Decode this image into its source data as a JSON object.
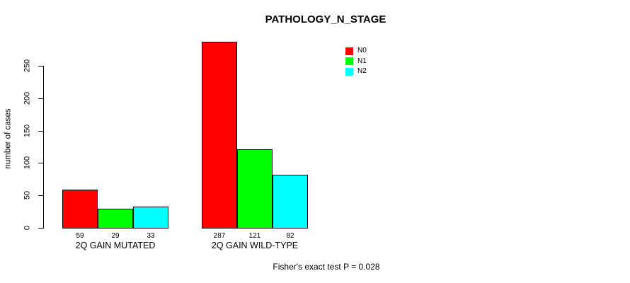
{
  "chart_data": {
    "type": "bar",
    "title": "PATHOLOGY_N_STAGE",
    "ylabel": "number of cases",
    "xlabel": "",
    "ylim": [
      0,
      250
    ],
    "yticks": [
      0,
      50,
      100,
      150,
      200,
      250
    ],
    "grid": false,
    "legend_position": "top-right",
    "categories": [
      "2Q GAIN MUTATED",
      "2Q GAIN WILD-TYPE"
    ],
    "series": [
      {
        "name": "N0",
        "color": "#ff0000",
        "values": [
          59,
          287
        ]
      },
      {
        "name": "N1",
        "color": "#00ff00",
        "values": [
          29,
          121
        ]
      },
      {
        "name": "N2",
        "color": "#00ffff",
        "values": [
          33,
          82
        ]
      }
    ],
    "bar_values_labeled": true,
    "annotation": "Fisher's exact test P = 0.028"
  }
}
